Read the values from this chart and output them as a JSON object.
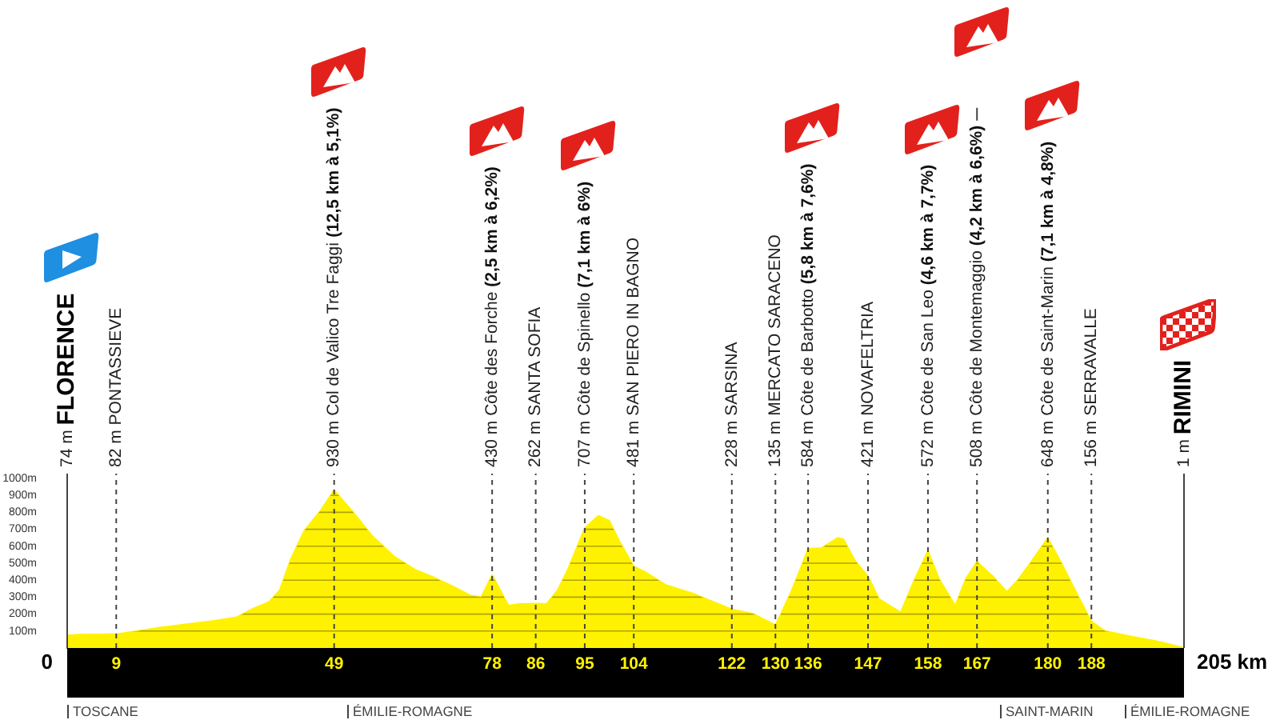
{
  "chart_data": {
    "type": "area",
    "color": "#fff200",
    "x": [
      0,
      3,
      6,
      9,
      13,
      17,
      22,
      27,
      31,
      34,
      37,
      39,
      41,
      43.5,
      46.5,
      49,
      52.5,
      56,
      60,
      64,
      67,
      71,
      74,
      76,
      78,
      79.5,
      81,
      83,
      86,
      88,
      90,
      92,
      95,
      97.5,
      99.5,
      101.5,
      104,
      106,
      110,
      115,
      118,
      122,
      126,
      130,
      131,
      133,
      135,
      136,
      138.5,
      141.5,
      142.5,
      144.5,
      147,
      149,
      151,
      153,
      155.5,
      158,
      160,
      163,
      165,
      167,
      170,
      172.5,
      174.5,
      177,
      180,
      182.5,
      185.5,
      188,
      190.5,
      195,
      200,
      205
    ],
    "values": [
      74,
      80,
      80,
      82,
      100,
      120,
      140,
      160,
      180,
      230,
      270,
      340,
      520,
      690,
      810,
      930,
      800,
      660,
      540,
      460,
      420,
      360,
      310,
      300,
      430,
      340,
      250,
      260,
      262,
      260,
      340,
      470,
      707,
      780,
      750,
      620,
      481,
      450,
      370,
      320,
      280,
      228,
      200,
      135,
      200,
      340,
      500,
      584,
      590,
      650,
      640,
      520,
      421,
      290,
      250,
      210,
      400,
      572,
      410,
      250,
      410,
      508,
      420,
      330,
      400,
      510,
      648,
      500,
      310,
      156,
      100,
      70,
      40,
      1
    ],
    "xlim": [
      0,
      205
    ],
    "xticks": [
      9,
      49,
      78,
      86,
      95,
      104,
      122,
      130,
      136,
      147,
      158,
      167,
      180,
      188
    ],
    "ylim": [
      0,
      1000
    ],
    "yticks": [
      {
        "value": 100,
        "label": "100m"
      },
      {
        "value": 200,
        "label": "200m"
      },
      {
        "value": 300,
        "label": "300m"
      },
      {
        "value": 400,
        "label": "400m"
      },
      {
        "value": 500,
        "label": "500m"
      },
      {
        "value": 600,
        "label": "600m"
      },
      {
        "value": 700,
        "label": "700m"
      },
      {
        "value": 800,
        "label": "800m"
      },
      {
        "value": 900,
        "label": "900m"
      },
      {
        "value": 1000,
        "label": "1000m"
      }
    ],
    "grid": "y",
    "ref_lines": [
      {
        "axis": "x",
        "value": 0,
        "label": "74 m FLORENCE",
        "color": "#444444",
        "line_style": "solid"
      },
      {
        "axis": "x",
        "value": 9,
        "label": "82 m PONTASSIEVE",
        "color": "#444444",
        "line_style": "dashed"
      },
      {
        "axis": "x",
        "value": 49,
        "label": "930 m Col de Valico Tre Faggi (12,5 km à 5,1%)",
        "color": "#444444",
        "line_style": "dashed"
      },
      {
        "axis": "x",
        "value": 78,
        "label": "430 m Côte des Forche (2,5 km à 6,2%)",
        "color": "#444444",
        "line_style": "dashed"
      },
      {
        "axis": "x",
        "value": 86,
        "label": "262 m SANTA SOFIA",
        "color": "#444444",
        "line_style": "dashed"
      },
      {
        "axis": "x",
        "value": 95,
        "label": "707 m Côte de Spinello (7,1 km à 6%)",
        "color": "#444444",
        "line_style": "dashed"
      },
      {
        "axis": "x",
        "value": 104,
        "label": "481 m SAN PIERO IN BAGNO",
        "color": "#444444",
        "line_style": "dashed"
      },
      {
        "axis": "x",
        "value": 122,
        "label": "228 m SARSINA",
        "color": "#444444",
        "line_style": "dashed"
      },
      {
        "axis": "x",
        "value": 130,
        "label": "135 m MERCATO SARACENO",
        "color": "#444444",
        "line_style": "dashed"
      },
      {
        "axis": "x",
        "value": 136,
        "label": "584 m Côte de Barbotto (5,8 km à 7,6%)",
        "color": "#444444",
        "line_style": "dashed"
      },
      {
        "axis": "x",
        "value": 147,
        "label": "421 m NOVAFELTRIA",
        "color": "#444444",
        "line_style": "dashed"
      },
      {
        "axis": "x",
        "value": 158,
        "label": "572 m Côte de San Leo (4,6 km à 7,7%)",
        "color": "#444444",
        "line_style": "dashed"
      },
      {
        "axis": "x",
        "value": 167,
        "label": "508 m Côte de Montemaggio (4,2 km à 6,6%)",
        "color": "#444444",
        "line_style": "dashed"
      },
      {
        "axis": "x",
        "value": 180,
        "label": "648 m Côte de Saint-Marin (7,1 km à 4,8%)",
        "color": "#444444",
        "line_style": "dashed"
      },
      {
        "axis": "x",
        "value": 188,
        "label": "156 m SERRAVALLE",
        "color": "#444444",
        "line_style": "dashed"
      },
      {
        "axis": "x",
        "value": 205,
        "label": "1 m RIMINI",
        "color": "#444444",
        "line_style": "solid"
      }
    ],
    "annotations": [
      "0",
      "205 km",
      "TOSCANE",
      "ÉMILIE-ROMAGNE",
      "SAINT-MARIN",
      "ÉMILIE-ROMAGNE"
    ]
  }
}
